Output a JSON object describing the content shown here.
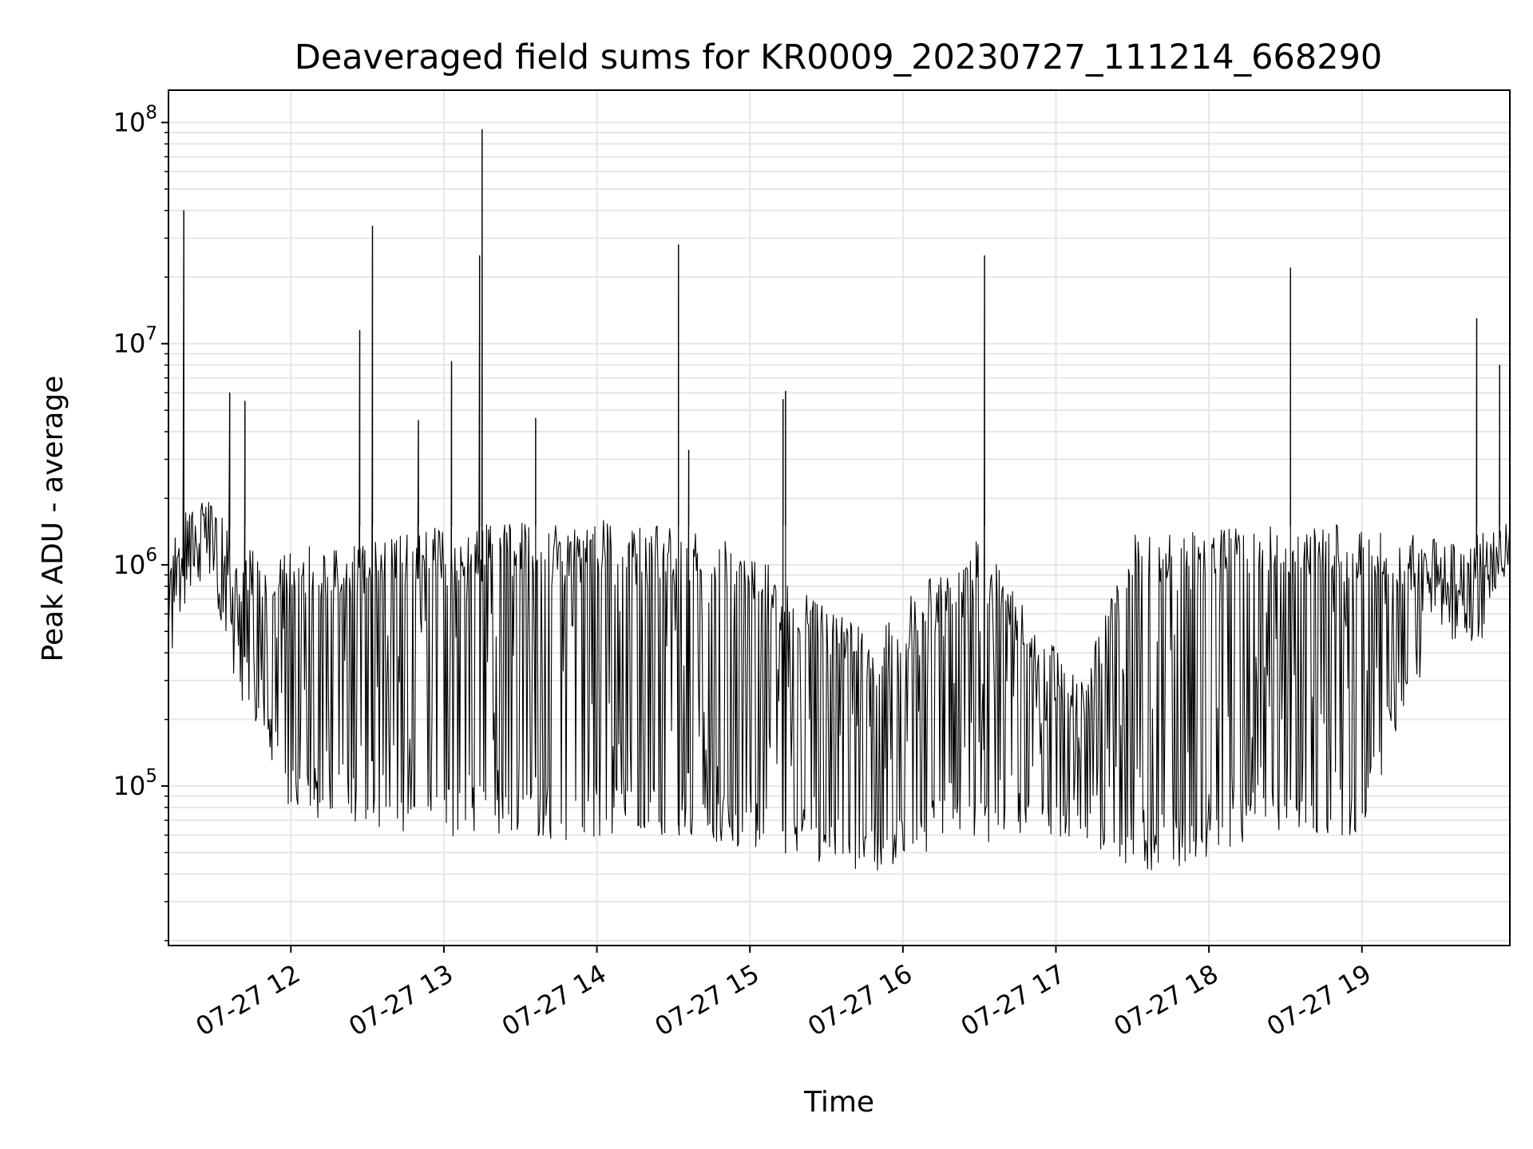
{
  "chart_data": {
    "type": "line",
    "title": "Deaveraged field sums for KR0009_20230727_111214_668290",
    "xlabel": "Time",
    "ylabel": "Peak ADU - average",
    "yscale": "log",
    "ylim": [
      19000,
      140000000
    ],
    "xlim": [
      "2023-07-27 11:12",
      "2023-07-27 19:58"
    ],
    "grid": true,
    "line_color": "#000000",
    "grid_color": "#e6e6e6",
    "x_ticks": [
      {
        "x": "2023-07-27 12:00",
        "label": "07-27 12"
      },
      {
        "x": "2023-07-27 13:00",
        "label": "07-27 13"
      },
      {
        "x": "2023-07-27 14:00",
        "label": "07-27 14"
      },
      {
        "x": "2023-07-27 15:00",
        "label": "07-27 15"
      },
      {
        "x": "2023-07-27 16:00",
        "label": "07-27 16"
      },
      {
        "x": "2023-07-27 17:00",
        "label": "07-27 17"
      },
      {
        "x": "2023-07-27 18:00",
        "label": "07-27 18"
      },
      {
        "x": "2023-07-27 19:00",
        "label": "07-27 19"
      }
    ],
    "y_ticks": [
      {
        "value": 100000,
        "base": "10",
        "exp": "5"
      },
      {
        "value": 1000000,
        "base": "10",
        "exp": "6"
      },
      {
        "value": 10000000,
        "base": "10",
        "exp": "7"
      },
      {
        "value": 100000000,
        "base": "10",
        "exp": "8"
      }
    ],
    "envelope": [
      {
        "x": "2023-07-27 11:12",
        "lo": 300000,
        "hi": 1600000
      },
      {
        "x": "2023-07-27 11:20",
        "lo": 800000,
        "hi": 2000000
      },
      {
        "x": "2023-07-27 11:30",
        "lo": 700000,
        "hi": 1900000
      },
      {
        "x": "2023-07-27 11:40",
        "lo": 250000,
        "hi": 1200000
      },
      {
        "x": "2023-07-27 11:50",
        "lo": 160000,
        "hi": 1200000
      },
      {
        "x": "2023-07-27 12:00",
        "lo": 70000,
        "hi": 1200000
      },
      {
        "x": "2023-07-27 12:30",
        "lo": 65000,
        "hi": 1300000
      },
      {
        "x": "2023-07-27 13:00",
        "lo": 58000,
        "hi": 1500000
      },
      {
        "x": "2023-07-27 13:30",
        "lo": 55000,
        "hi": 1550000
      },
      {
        "x": "2023-07-27 14:00",
        "lo": 58000,
        "hi": 1600000
      },
      {
        "x": "2023-07-27 14:30",
        "lo": 60000,
        "hi": 1500000
      },
      {
        "x": "2023-07-27 15:00",
        "lo": 50000,
        "hi": 1200000
      },
      {
        "x": "2023-07-27 15:30",
        "lo": 42000,
        "hi": 700000
      },
      {
        "x": "2023-07-27 15:50",
        "lo": 38000,
        "hi": 500000
      },
      {
        "x": "2023-07-27 16:10",
        "lo": 48000,
        "hi": 900000
      },
      {
        "x": "2023-07-27 16:30",
        "lo": 55000,
        "hi": 1300000
      },
      {
        "x": "2023-07-27 16:50",
        "lo": 55000,
        "hi": 600000
      },
      {
        "x": "2023-07-27 17:10",
        "lo": 60000,
        "hi": 300000
      },
      {
        "x": "2023-07-27 17:30",
        "lo": 40000,
        "hi": 1400000
      },
      {
        "x": "2023-07-27 18:00",
        "lo": 45000,
        "hi": 1500000
      },
      {
        "x": "2023-07-27 18:20",
        "lo": 60000,
        "hi": 1500000
      },
      {
        "x": "2023-07-27 18:40",
        "lo": 55000,
        "hi": 1550000
      },
      {
        "x": "2023-07-27 19:00",
        "lo": 60000,
        "hi": 1500000
      },
      {
        "x": "2023-07-27 19:30",
        "lo": 500000,
        "hi": 1300000
      },
      {
        "x": "2023-07-27 19:45",
        "lo": 400000,
        "hi": 1400000
      },
      {
        "x": "2023-07-27 19:58",
        "lo": 800000,
        "hi": 1600000
      }
    ],
    "spikes": [
      {
        "x": "2023-07-27 11:18",
        "y": 40000000
      },
      {
        "x": "2023-07-27 11:36",
        "y": 6000000
      },
      {
        "x": "2023-07-27 11:42",
        "y": 5500000
      },
      {
        "x": "2023-07-27 12:27",
        "y": 11500000
      },
      {
        "x": "2023-07-27 12:32",
        "y": 34000000
      },
      {
        "x": "2023-07-27 12:50",
        "y": 4500000
      },
      {
        "x": "2023-07-27 13:03",
        "y": 8300000
      },
      {
        "x": "2023-07-27 13:14",
        "y": 25000000
      },
      {
        "x": "2023-07-27 13:15",
        "y": 93000000
      },
      {
        "x": "2023-07-27 13:36",
        "y": 4600000
      },
      {
        "x": "2023-07-27 14:32",
        "y": 28000000
      },
      {
        "x": "2023-07-27 14:36",
        "y": 3300000
      },
      {
        "x": "2023-07-27 15:13",
        "y": 5600000
      },
      {
        "x": "2023-07-27 15:14",
        "y": 6100000
      },
      {
        "x": "2023-07-27 16:32",
        "y": 25000000
      },
      {
        "x": "2023-07-27 18:32",
        "y": 22000000
      },
      {
        "x": "2023-07-27 19:45",
        "y": 13000000
      },
      {
        "x": "2023-07-27 19:54",
        "y": 8000000
      }
    ]
  }
}
